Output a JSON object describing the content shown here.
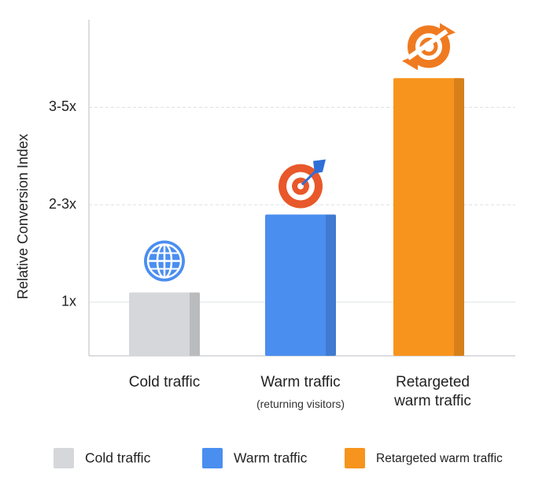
{
  "chart_data": {
    "type": "bar",
    "y_label": "Relative Conversion Index",
    "categories": [
      "Cold traffic",
      "Warm traffic",
      "Retargeted warm traffic"
    ],
    "category_notes": [
      null,
      "(returning visitors)",
      null
    ],
    "values": [
      1.1,
      1.9,
      3.3
    ],
    "colors": [
      "#d5d7da",
      "#4a8ef0",
      "#f7941d"
    ],
    "ylim": [
      0.45,
      3.9
    ],
    "yticks": [
      {
        "value": 1,
        "label": "1x"
      },
      {
        "value": 2,
        "label": "2-3x"
      },
      {
        "value": 3,
        "label": "3-5x"
      }
    ],
    "grid": true,
    "legend": "bottom"
  }
}
